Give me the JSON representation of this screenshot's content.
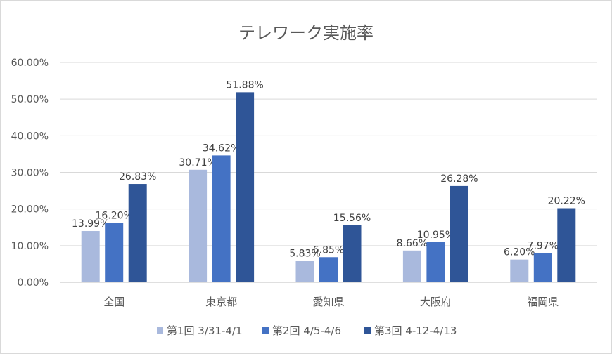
{
  "chart_data": {
    "type": "bar",
    "title": "テレワーク実施率",
    "xlabel": "",
    "ylabel": "",
    "ylim": [
      0,
      0.6
    ],
    "yticks": [
      "0.00%",
      "10.00%",
      "20.00%",
      "30.00%",
      "40.00%",
      "50.00%",
      "60.00%"
    ],
    "grid": true,
    "legend_position": "bottom",
    "categories": [
      "全国",
      "東京都",
      "愛知県",
      "大阪府",
      "福岡県"
    ],
    "series": [
      {
        "name": "第1回 3/31-4/1",
        "color": "#A9B9DD",
        "values": [
          0.1399,
          0.3071,
          0.0583,
          0.0866,
          0.062
        ],
        "labels": [
          "13.99%",
          "30.71%",
          "5.83%",
          "8.66%",
          "6.20%"
        ]
      },
      {
        "name": "第2回 4/5-4/6",
        "color": "#4472C4",
        "values": [
          0.162,
          0.3462,
          0.0685,
          0.1095,
          0.0797
        ],
        "labels": [
          "16.20%",
          "34.62%",
          "6.85%",
          "10.95%",
          "7.97%"
        ]
      },
      {
        "name": "第3回 4-12-4/13",
        "color": "#2F5597",
        "values": [
          0.2683,
          0.5188,
          0.1556,
          0.2628,
          0.2022
        ],
        "labels": [
          "26.83%",
          "51.88%",
          "15.56%",
          "26.28%",
          "20.22%"
        ]
      }
    ]
  }
}
